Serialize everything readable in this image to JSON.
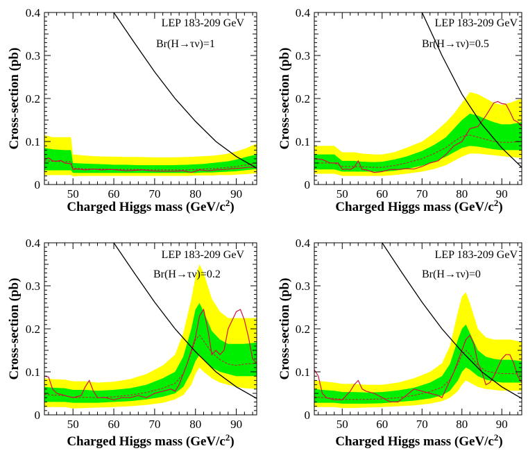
{
  "colors": {
    "band95": "#ffff00",
    "band68": "#00ee00",
    "observed": "#d0103a",
    "expected": "#d0103a",
    "theory": "#000000"
  },
  "chart_data": [
    {
      "type": "line",
      "xlabel": "Charged Higgs mass (GeV/c",
      "xlabel_sup": "2",
      "xlabel_end": ")",
      "ylabel": "Cross-section (pb)",
      "xlim": [
        43,
        95
      ],
      "ylim": [
        0,
        0.4
      ],
      "xticks": [
        50,
        60,
        70,
        80,
        90
      ],
      "yticks": [
        0,
        0.1,
        0.2,
        0.3,
        0.4
      ],
      "ytick_labels": [
        "0",
        "0.1",
        "0.2",
        "0.3",
        "0.4"
      ],
      "annotations": [
        "LEP 183-209 GeV",
        "Br(H→τν)=1"
      ],
      "x": [
        43,
        45,
        48,
        49.5,
        50,
        52,
        55,
        58,
        60,
        63,
        66,
        70,
        74,
        78,
        80,
        82,
        84,
        86,
        88,
        90,
        92,
        95
      ],
      "band95_low": [
        0.022,
        0.022,
        0.022,
        0.022,
        0.019,
        0.02,
        0.02,
        0.02,
        0.02,
        0.02,
        0.02,
        0.02,
        0.02,
        0.02,
        0.021,
        0.021,
        0.021,
        0.022,
        0.022,
        0.023,
        0.024,
        0.026
      ],
      "band95_high": [
        0.115,
        0.11,
        0.11,
        0.11,
        0.07,
        0.068,
        0.066,
        0.065,
        0.065,
        0.064,
        0.064,
        0.063,
        0.063,
        0.064,
        0.065,
        0.066,
        0.067,
        0.069,
        0.072,
        0.077,
        0.083,
        0.095
      ],
      "band68_low": [
        0.033,
        0.033,
        0.033,
        0.033,
        0.027,
        0.027,
        0.027,
        0.027,
        0.027,
        0.027,
        0.027,
        0.027,
        0.027,
        0.027,
        0.027,
        0.028,
        0.028,
        0.029,
        0.03,
        0.031,
        0.033,
        0.036
      ],
      "band68_high": [
        0.085,
        0.082,
        0.08,
        0.08,
        0.05,
        0.049,
        0.048,
        0.047,
        0.046,
        0.046,
        0.045,
        0.045,
        0.045,
        0.046,
        0.047,
        0.048,
        0.05,
        0.052,
        0.054,
        0.058,
        0.063,
        0.07
      ],
      "expected": [
        0.055,
        0.054,
        0.053,
        0.053,
        0.038,
        0.037,
        0.036,
        0.036,
        0.035,
        0.035,
        0.035,
        0.034,
        0.034,
        0.034,
        0.035,
        0.036,
        0.037,
        0.038,
        0.04,
        0.042,
        0.045,
        0.05
      ],
      "observed_x": [
        43,
        44,
        45,
        46,
        47,
        48,
        49,
        49.5,
        50,
        51,
        53,
        55,
        57,
        59,
        61,
        63,
        65,
        67,
        69,
        71,
        73,
        75,
        77,
        79,
        81,
        83,
        85,
        87,
        89,
        91,
        93,
        95
      ],
      "observed": [
        0.058,
        0.062,
        0.055,
        0.054,
        0.056,
        0.05,
        0.049,
        0.048,
        0.035,
        0.036,
        0.034,
        0.036,
        0.034,
        0.035,
        0.034,
        0.032,
        0.033,
        0.034,
        0.032,
        0.031,
        0.031,
        0.031,
        0.032,
        0.028,
        0.034,
        0.032,
        0.034,
        0.035,
        0.037,
        0.038,
        0.04,
        0.04
      ],
      "theory_x": [
        60,
        65,
        70,
        75,
        80,
        85,
        90,
        95
      ],
      "theory": [
        0.4,
        0.33,
        0.262,
        0.2,
        0.147,
        0.1,
        0.065,
        0.038
      ]
    },
    {
      "type": "line",
      "xlabel": "Charged Higgs mass (GeV/c",
      "xlabel_sup": "2",
      "xlabel_end": ")",
      "ylabel": "Cross-section (pb)",
      "xlim": [
        43,
        95
      ],
      "ylim": [
        0,
        0.4
      ],
      "xticks": [
        50,
        60,
        70,
        80,
        90
      ],
      "yticks": [
        0,
        0.1,
        0.2,
        0.3,
        0.4
      ],
      "ytick_labels": [
        "0",
        "0.1",
        "0.2",
        "0.3",
        "0.4"
      ],
      "annotations": [
        "LEP 183-209 GeV",
        "Br(H→τν)=0.5"
      ],
      "x": [
        43,
        45,
        48,
        50,
        53,
        55,
        58,
        60,
        63,
        66,
        70,
        73,
        76,
        78,
        80,
        82,
        84,
        86,
        88,
        90,
        92,
        95
      ],
      "band95_low": [
        0.025,
        0.025,
        0.025,
        0.02,
        0.02,
        0.02,
        0.02,
        0.02,
        0.022,
        0.025,
        0.03,
        0.036,
        0.045,
        0.055,
        0.065,
        0.072,
        0.072,
        0.07,
        0.068,
        0.066,
        0.064,
        0.062
      ],
      "band95_high": [
        0.09,
        0.09,
        0.09,
        0.075,
        0.075,
        0.072,
        0.07,
        0.07,
        0.075,
        0.085,
        0.1,
        0.12,
        0.145,
        0.165,
        0.19,
        0.215,
        0.21,
        0.2,
        0.19,
        0.185,
        0.19,
        0.2
      ],
      "band68_low": [
        0.035,
        0.035,
        0.035,
        0.03,
        0.03,
        0.03,
        0.03,
        0.03,
        0.032,
        0.036,
        0.044,
        0.052,
        0.065,
        0.075,
        0.085,
        0.09,
        0.088,
        0.085,
        0.082,
        0.08,
        0.08,
        0.08
      ],
      "band68_high": [
        0.07,
        0.07,
        0.07,
        0.055,
        0.055,
        0.053,
        0.052,
        0.053,
        0.058,
        0.065,
        0.078,
        0.092,
        0.11,
        0.13,
        0.15,
        0.165,
        0.16,
        0.152,
        0.145,
        0.14,
        0.14,
        0.145
      ],
      "expected": [
        0.05,
        0.05,
        0.05,
        0.042,
        0.042,
        0.041,
        0.04,
        0.04,
        0.044,
        0.05,
        0.06,
        0.072,
        0.086,
        0.1,
        0.112,
        0.115,
        0.11,
        0.105,
        0.1,
        0.098,
        0.098,
        0.1
      ],
      "observed_x": [
        43,
        45,
        47,
        49,
        50,
        51,
        52,
        53,
        54,
        55,
        56,
        58,
        60,
        62,
        64,
        66,
        68,
        70,
        72,
        74,
        76,
        78,
        80,
        82,
        84,
        86,
        88,
        89,
        90,
        91,
        92,
        93,
        94,
        95
      ],
      "observed": [
        0.06,
        0.058,
        0.05,
        0.05,
        0.035,
        0.036,
        0.035,
        0.04,
        0.055,
        0.035,
        0.034,
        0.028,
        0.03,
        0.035,
        0.035,
        0.037,
        0.036,
        0.042,
        0.05,
        0.055,
        0.07,
        0.09,
        0.1,
        0.13,
        0.135,
        0.16,
        0.19,
        0.193,
        0.188,
        0.187,
        0.17,
        0.15,
        0.145,
        0.135
      ],
      "theory_x": [
        70,
        75,
        80,
        85,
        90,
        95
      ],
      "theory": [
        0.4,
        0.3,
        0.21,
        0.14,
        0.085,
        0.04
      ]
    },
    {
      "type": "line",
      "xlabel": "Charged Higgs mass (GeV/c",
      "xlabel_sup": "2",
      "xlabel_end": ")",
      "ylabel": "Cross-section (pb)",
      "xlim": [
        43,
        95
      ],
      "ylim": [
        0,
        0.4
      ],
      "xticks": [
        50,
        60,
        70,
        80,
        90
      ],
      "yticks": [
        0,
        0.1,
        0.2,
        0.3,
        0.4
      ],
      "ytick_labels": [
        "0",
        "0.1",
        "0.2",
        "0.3",
        "0.4"
      ],
      "annotations": [
        "LEP 183-209 GeV",
        "Br(H→τν)=0.2"
      ],
      "x": [
        43,
        45,
        48,
        50,
        53,
        56,
        60,
        64,
        68,
        72,
        75,
        77,
        79,
        80,
        81,
        82,
        84,
        86,
        88,
        90,
        92,
        95
      ],
      "band95_low": [
        0.018,
        0.018,
        0.018,
        0.015,
        0.016,
        0.017,
        0.018,
        0.02,
        0.023,
        0.028,
        0.036,
        0.046,
        0.07,
        0.095,
        0.11,
        0.1,
        0.085,
        0.075,
        0.07,
        0.065,
        0.062,
        0.06
      ],
      "band95_high": [
        0.085,
        0.083,
        0.082,
        0.078,
        0.078,
        0.075,
        0.077,
        0.083,
        0.095,
        0.115,
        0.14,
        0.19,
        0.27,
        0.32,
        0.35,
        0.33,
        0.27,
        0.24,
        0.225,
        0.225,
        0.225,
        0.225
      ],
      "band68_low": [
        0.03,
        0.03,
        0.03,
        0.028,
        0.028,
        0.028,
        0.03,
        0.032,
        0.036,
        0.042,
        0.05,
        0.065,
        0.1,
        0.125,
        0.14,
        0.128,
        0.11,
        0.1,
        0.095,
        0.09,
        0.09,
        0.09
      ],
      "band68_high": [
        0.065,
        0.063,
        0.062,
        0.058,
        0.058,
        0.056,
        0.058,
        0.062,
        0.07,
        0.085,
        0.1,
        0.135,
        0.2,
        0.245,
        0.26,
        0.24,
        0.195,
        0.175,
        0.165,
        0.165,
        0.165,
        0.168
      ],
      "expected": [
        0.048,
        0.046,
        0.045,
        0.04,
        0.041,
        0.04,
        0.042,
        0.046,
        0.052,
        0.062,
        0.073,
        0.095,
        0.145,
        0.175,
        0.185,
        0.172,
        0.145,
        0.128,
        0.118,
        0.115,
        0.118,
        0.12
      ],
      "observed_x": [
        43,
        44,
        45,
        46,
        48,
        50,
        52,
        53,
        54,
        55,
        56,
        58,
        60,
        62,
        64,
        66,
        68,
        70,
        72,
        74,
        75,
        76,
        78,
        80,
        81,
        82,
        83,
        84,
        85,
        86,
        87,
        88,
        89,
        90,
        91,
        92,
        93,
        94,
        95
      ],
      "observed": [
        0.09,
        0.088,
        0.06,
        0.05,
        0.045,
        0.04,
        0.045,
        0.065,
        0.08,
        0.055,
        0.04,
        0.04,
        0.035,
        0.04,
        0.04,
        0.045,
        0.04,
        0.05,
        0.055,
        0.06,
        0.055,
        0.07,
        0.12,
        0.18,
        0.23,
        0.245,
        0.2,
        0.14,
        0.15,
        0.14,
        0.15,
        0.2,
        0.22,
        0.24,
        0.245,
        0.22,
        0.18,
        0.13,
        0.12
      ],
      "theory_x": [
        60,
        65,
        70,
        75,
        80,
        85,
        90,
        95
      ],
      "theory": [
        0.4,
        0.33,
        0.262,
        0.2,
        0.147,
        0.1,
        0.065,
        0.038
      ]
    },
    {
      "type": "line",
      "xlabel": "Charged Higgs mass (GeV/c",
      "xlabel_sup": "2",
      "xlabel_end": ")",
      "ylabel": "Cross-section (pb)",
      "xlim": [
        43,
        95
      ],
      "ylim": [
        0,
        0.4
      ],
      "xticks": [
        50,
        60,
        70,
        80,
        90
      ],
      "yticks": [
        0,
        0.1,
        0.2,
        0.3,
        0.4
      ],
      "ytick_labels": [
        "0",
        "0.1",
        "0.2",
        "0.3",
        "0.4"
      ],
      "annotations": [
        "LEP 183-209 GeV",
        "Br(H→τν)=0"
      ],
      "x": [
        43,
        45,
        48,
        50,
        53,
        56,
        60,
        64,
        68,
        72,
        75,
        77,
        79,
        80,
        81,
        82,
        84,
        86,
        88,
        90,
        92,
        95
      ],
      "band95_low": [
        0.018,
        0.018,
        0.018,
        0.016,
        0.016,
        0.017,
        0.018,
        0.02,
        0.022,
        0.026,
        0.032,
        0.04,
        0.055,
        0.07,
        0.08,
        0.075,
        0.065,
        0.06,
        0.058,
        0.056,
        0.056,
        0.056
      ],
      "band95_high": [
        0.08,
        0.078,
        0.075,
        0.072,
        0.072,
        0.07,
        0.07,
        0.075,
        0.085,
        0.1,
        0.12,
        0.16,
        0.24,
        0.275,
        0.285,
        0.26,
        0.2,
        0.18,
        0.175,
        0.175,
        0.175,
        0.17
      ],
      "band68_low": [
        0.028,
        0.028,
        0.028,
        0.026,
        0.026,
        0.026,
        0.027,
        0.03,
        0.033,
        0.038,
        0.045,
        0.056,
        0.08,
        0.1,
        0.11,
        0.105,
        0.09,
        0.082,
        0.078,
        0.075,
        0.075,
        0.075
      ],
      "band68_high": [
        0.06,
        0.058,
        0.056,
        0.053,
        0.053,
        0.052,
        0.053,
        0.057,
        0.063,
        0.075,
        0.09,
        0.118,
        0.175,
        0.2,
        0.21,
        0.19,
        0.15,
        0.135,
        0.13,
        0.128,
        0.128,
        0.125
      ],
      "expected": [
        0.042,
        0.04,
        0.038,
        0.036,
        0.036,
        0.036,
        0.037,
        0.04,
        0.045,
        0.054,
        0.064,
        0.082,
        0.118,
        0.14,
        0.15,
        0.14,
        0.115,
        0.102,
        0.098,
        0.096,
        0.096,
        0.095
      ],
      "observed_x": [
        43,
        44,
        45,
        46,
        48,
        50,
        52,
        53,
        54,
        55,
        56,
        58,
        60,
        62,
        64,
        66,
        68,
        70,
        72,
        74,
        75,
        76,
        78,
        80,
        81,
        82,
        83,
        84,
        85,
        86,
        87,
        88,
        89,
        90,
        91,
        92,
        93,
        94,
        95
      ],
      "observed": [
        0.105,
        0.09,
        0.05,
        0.04,
        0.035,
        0.035,
        0.055,
        0.07,
        0.08,
        0.06,
        0.055,
        0.05,
        0.04,
        0.03,
        0.03,
        0.045,
        0.06,
        0.055,
        0.05,
        0.045,
        0.04,
        0.06,
        0.1,
        0.15,
        0.175,
        0.185,
        0.165,
        0.12,
        0.1,
        0.07,
        0.075,
        0.09,
        0.11,
        0.13,
        0.14,
        0.14,
        0.12,
        0.09,
        0.075
      ],
      "theory_x": [
        60,
        65,
        70,
        75,
        80,
        85,
        90,
        95
      ],
      "theory": [
        0.4,
        0.33,
        0.262,
        0.2,
        0.147,
        0.1,
        0.065,
        0.038
      ]
    }
  ]
}
